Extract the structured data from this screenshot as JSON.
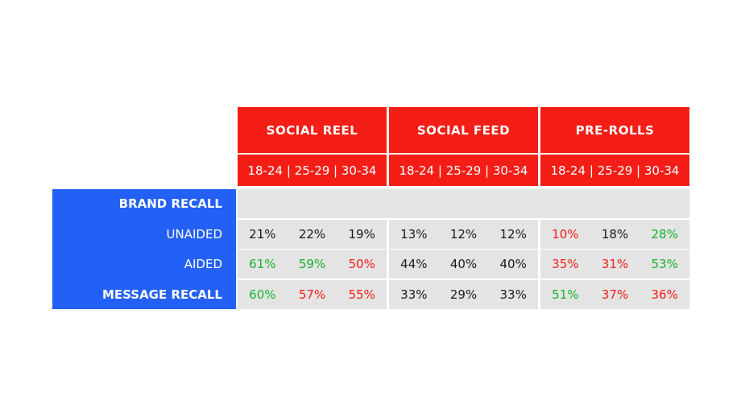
{
  "colors": {
    "header_red": "#f41e16",
    "label_blue": "#2360f5",
    "cell_grey": "#e4e4e4",
    "positive_green": "#18b32c",
    "negative_red": "#f41e16",
    "neutral_text": "#1a1a1a"
  },
  "chart_data": {
    "type": "table",
    "columns": [
      {
        "group": "SOCIAL REEL",
        "age_header": "18-24 | 25-29 | 30-34",
        "ages": [
          "18-24",
          "25-29",
          "30-34"
        ]
      },
      {
        "group": "SOCIAL FEED",
        "age_header": "18-24 | 25-29 | 30-34",
        "ages": [
          "18-24",
          "25-29",
          "30-34"
        ]
      },
      {
        "group": "PRE-ROLLS",
        "age_header": "18-24 | 25-29 | 30-34",
        "ages": [
          "18-24",
          "25-29",
          "30-34"
        ]
      }
    ],
    "rows": [
      {
        "label": "BRAND RECALL",
        "bold": true,
        "section": true,
        "values": []
      },
      {
        "label": "UNAIDED",
        "bold": false,
        "section": false,
        "values": [
          "21%",
          "22%",
          "19%",
          "13%",
          "12%",
          "12%",
          "10%",
          "18%",
          "28%"
        ],
        "tones": [
          "neutral",
          "neutral",
          "neutral",
          "neutral",
          "neutral",
          "neutral",
          "neg",
          "neutral",
          "pos"
        ]
      },
      {
        "label": "AIDED",
        "bold": false,
        "section": false,
        "values": [
          "61%",
          "59%",
          "50%",
          "44%",
          "40%",
          "40%",
          "35%",
          "31%",
          "53%"
        ],
        "tones": [
          "pos",
          "pos",
          "neg",
          "neutral",
          "neutral",
          "neutral",
          "neg",
          "neg",
          "pos"
        ]
      },
      {
        "label": "MESSAGE RECALL",
        "bold": true,
        "section": false,
        "values": [
          "60%",
          "57%",
          "55%",
          "33%",
          "29%",
          "33%",
          "51%",
          "37%",
          "36%"
        ],
        "tones": [
          "pos",
          "neg",
          "neg",
          "neutral",
          "neutral",
          "neutral",
          "pos",
          "neg",
          "neg"
        ]
      }
    ]
  }
}
